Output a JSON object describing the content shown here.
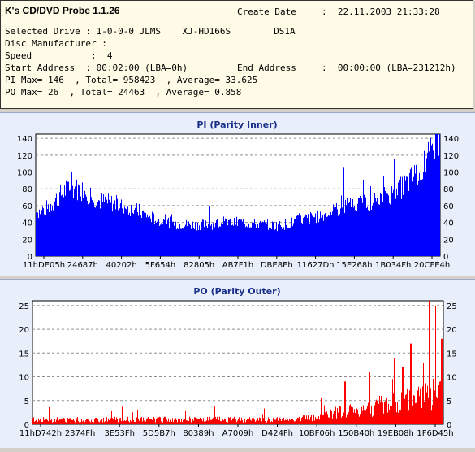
{
  "header": {
    "app_title": "K's CD/DVD Probe 1.1.26",
    "create_date_label": "Create Date",
    "create_date_value": ":  22.11.2003 21:33:28",
    "line_drive": "Selected Drive : 1-0-0-0 JLMS    XJ-HD166S        DS1A",
    "line_manufacturer": "Disc Manufacturer :",
    "line_speed": "Speed           :  4",
    "line_start": "Start Address  : 00:02:00 (LBA=0h)",
    "end_address_label": "End Address",
    "end_address_value": ":  00:00:00 (LBA=231212h)",
    "line_pi": "PI Max= 146  , Total= 958423  , Average= 33.625",
    "line_po": "PO Max= 26  , Total= 24463  , Average= 0.858"
  },
  "chart_data": [
    {
      "type": "bar",
      "title": "PI (Parity Inner)",
      "color": "#0000ff",
      "ylim": [
        0,
        145
      ],
      "yticks": [
        0,
        20,
        40,
        60,
        80,
        100,
        120,
        140
      ],
      "xtick_labels": [
        "11hDE05h",
        "24687h",
        "40202h",
        "5F654h",
        "82805h",
        "AB7F1h",
        "DBE8Eh",
        "11627Dh",
        "15E268h",
        "1B034Fh",
        "20CFE4h"
      ],
      "grid": true,
      "x_fraction": [
        0,
        0.03,
        0.08,
        0.12,
        0.15,
        0.2,
        0.25,
        0.3,
        0.35,
        0.4,
        0.45,
        0.5,
        0.55,
        0.6,
        0.65,
        0.7,
        0.75,
        0.8,
        0.85,
        0.9,
        0.93,
        0.96,
        0.98,
        1
      ],
      "values": [
        52,
        58,
        82,
        78,
        66,
        62,
        54,
        43,
        38,
        37,
        38,
        40,
        38,
        36,
        42,
        48,
        56,
        62,
        68,
        80,
        92,
        108,
        125,
        140
      ],
      "spikes": [
        [
          0.215,
          95
        ],
        [
          0.255,
          62
        ],
        [
          0.43,
          60
        ],
        [
          0.76,
          105
        ],
        [
          0.81,
          90
        ],
        [
          0.86,
          95
        ],
        [
          0.885,
          115
        ],
        [
          0.9,
          90
        ],
        [
          0.96,
          125
        ],
        [
          0.99,
          146
        ]
      ]
    },
    {
      "type": "bar",
      "title": "PO (Parity Outer)",
      "color": "#ff0000",
      "ylim": [
        0,
        26
      ],
      "yticks": [
        0,
        5,
        10,
        15,
        20,
        25
      ],
      "xtick_labels": [
        "11hD742h",
        "2374Fh",
        "3E53Fh",
        "5D5B7h",
        "80389h",
        "A7009h",
        "D424Fh",
        "10BF06h",
        "150B40h",
        "19EB08h",
        "1F6D45h"
      ],
      "grid": true,
      "x_fraction": [
        0,
        0.2,
        0.4,
        0.6,
        0.68,
        0.72,
        0.78,
        0.85,
        0.9,
        0.95,
        1
      ],
      "values": [
        1,
        1,
        1,
        1,
        1.3,
        2,
        3,
        4,
        4.5,
        6,
        7
      ],
      "spikes": [
        [
          0.71,
          4
        ],
        [
          0.76,
          9
        ],
        [
          0.82,
          11
        ],
        [
          0.86,
          8
        ],
        [
          0.88,
          14
        ],
        [
          0.9,
          12
        ],
        [
          0.92,
          17
        ],
        [
          0.95,
          13
        ],
        [
          0.965,
          26
        ],
        [
          0.98,
          25
        ],
        [
          0.995,
          18
        ]
      ]
    }
  ]
}
